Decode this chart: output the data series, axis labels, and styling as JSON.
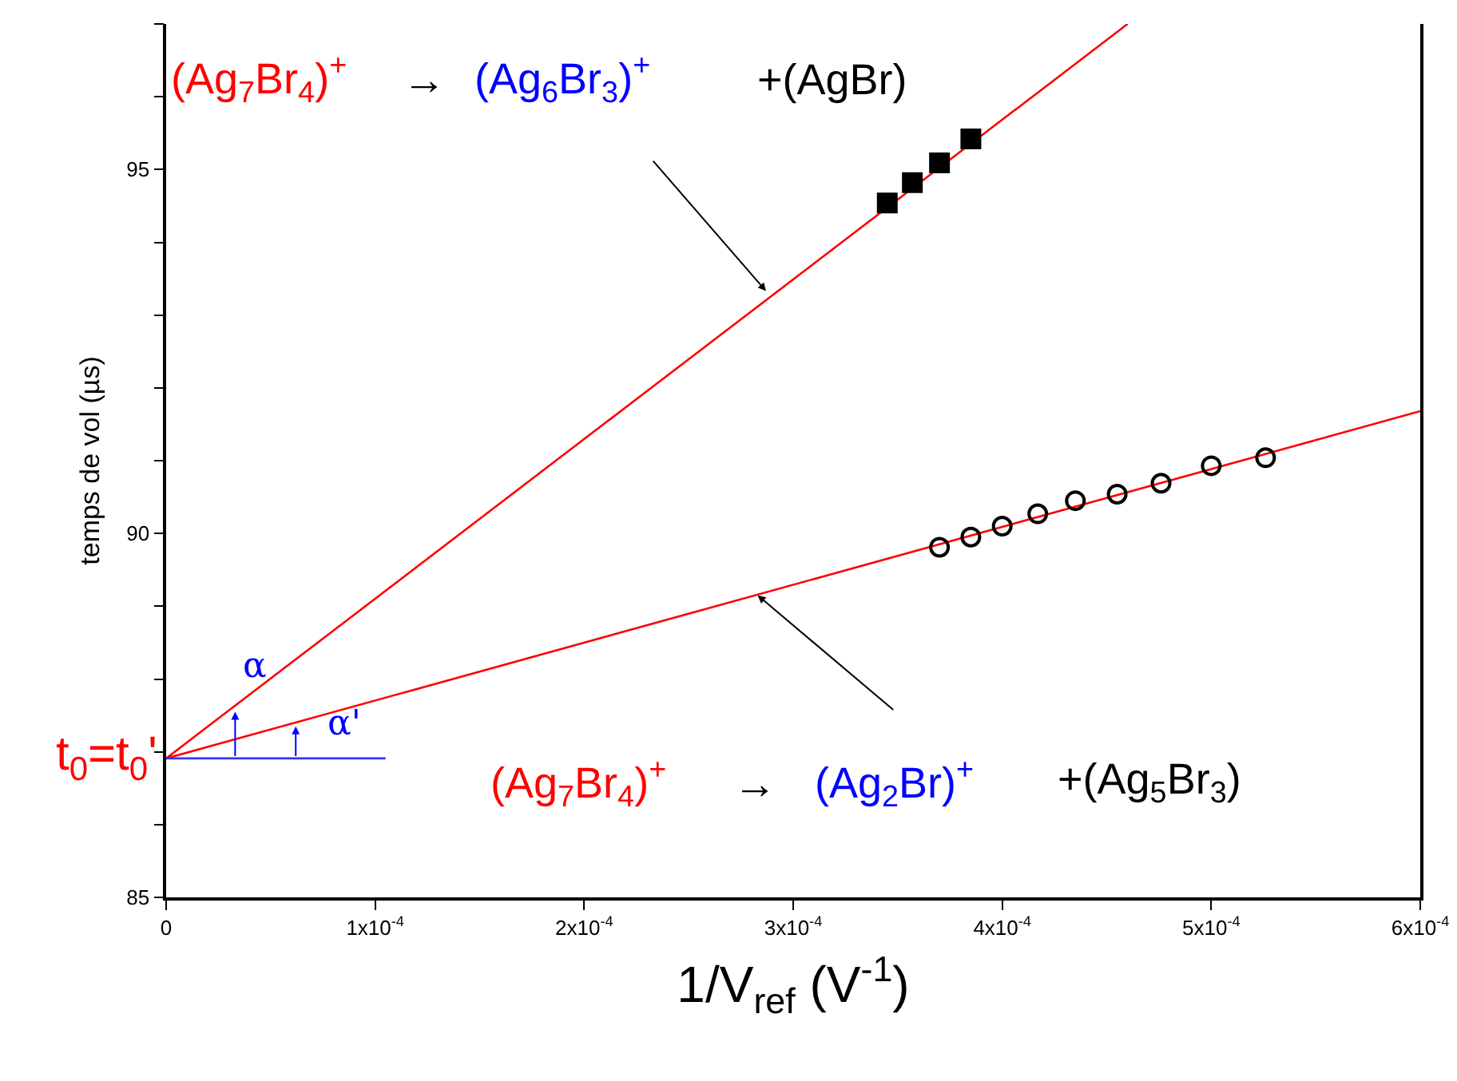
{
  "chart_data": {
    "type": "scatter",
    "xlabel": "1/V$_{ref}$ (V$^{-1}$)",
    "ylabel": "temps de vol (µs)",
    "xlim": [
      0,
      0.0006
    ],
    "ylim": [
      85,
      97
    ],
    "xticks": [
      0,
      {
        "value": 0.0001,
        "label": "1x10$^{-4}$"
      },
      {
        "value": 0.0002,
        "label": "2x10$^{-4}$"
      },
      {
        "value": 0.0003,
        "label": "3x10$^{-4}$"
      },
      {
        "value": 0.0004,
        "label": "4x10$^{-4}$"
      },
      {
        "value": 0.0005,
        "label": "5x10$^{-4}$"
      },
      {
        "value": 0.0006,
        "label": "6x10$^{-4}$"
      }
    ],
    "yticks": [
      85,
      {
        "value": 86,
        "label": null
      },
      {
        "value": 87,
        "label": null
      },
      {
        "value": 88,
        "label": null
      },
      {
        "value": 89,
        "label": null
      },
      90,
      {
        "value": 91,
        "label": null
      },
      {
        "value": 92,
        "label": null
      },
      {
        "value": 93,
        "label": null
      },
      {
        "value": 94,
        "label": null
      },
      95,
      {
        "value": 96,
        "label": null
      },
      {
        "value": 97,
        "label": null
      }
    ],
    "series": [
      {
        "type": "line",
        "color": "#ff0000",
        "x": [
          0,
          0.00046
        ],
        "values": [
          86.91,
          97.0
        ],
        "marker": "none"
      },
      {
        "type": "line",
        "color": "#ff0000",
        "x": [
          0,
          0.0006
        ],
        "values": [
          86.91,
          91.68
        ],
        "marker": "none"
      },
      {
        "type": "line",
        "color": "#3333ff",
        "x": [
          0,
          0.000105
        ],
        "values": [
          86.91,
          86.91
        ],
        "marker": "none"
      },
      {
        "color": "#000000",
        "marker": "square",
        "x": [
          0.000345,
          0.000357,
          0.00037,
          0.000385
        ],
        "values": [
          94.54,
          94.82,
          95.09,
          95.42
        ]
      },
      {
        "color": "#000000",
        "marker": "circle",
        "x": [
          0.00037,
          0.000385,
          0.0004,
          0.000417,
          0.000435,
          0.000455,
          0.000476,
          0.0005,
          0.000526
        ],
        "values": [
          89.81,
          89.95,
          90.1,
          90.27,
          90.45,
          90.54,
          90.69,
          90.93,
          91.04
        ]
      }
    ],
    "annotations": [
      "(Ag$_{7}$Br$_{4}$)$^{+}$",
      "→",
      {
        "text": "(Ag$_{6}$Br$_{3}$)$^{+}$",
        "x": 0.000287,
        "y": 93.33
      },
      "+(AgBr)",
      "(Ag$_{7}$Br$_{4}$)$^{+}$",
      "→",
      {
        "text": "(Ag$_{2}$Br)$^{+}$",
        "x": 0.000283,
        "y": 89.15
      },
      "+(Ag$_{5}$Br$_{3}$)",
      "t$_{0}$=t$_{0}$'",
      "α",
      "α'"
    ]
  }
}
